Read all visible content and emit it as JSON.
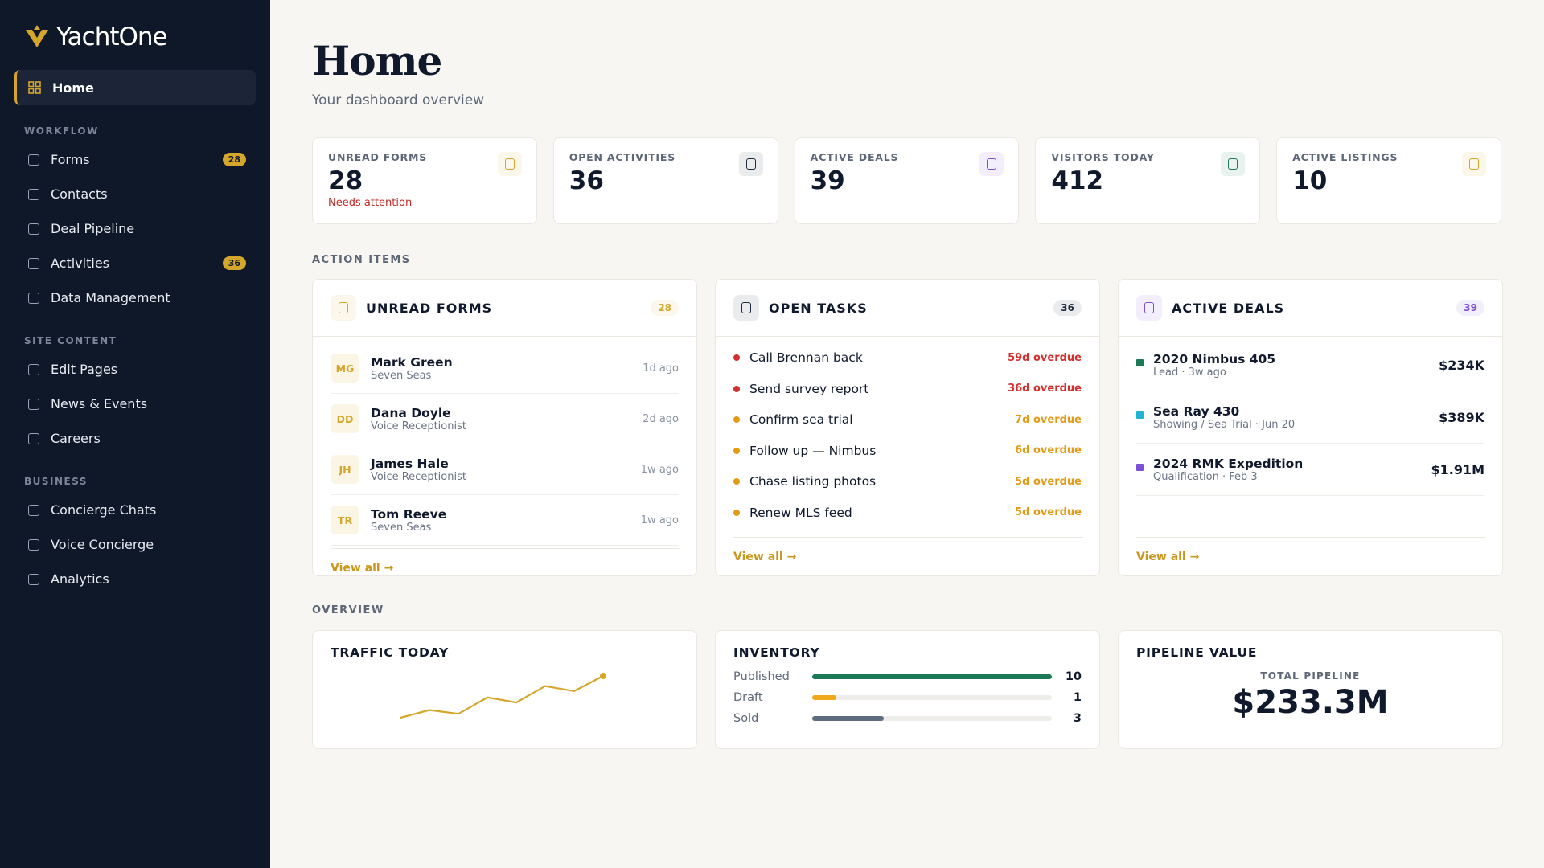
{
  "brand": "YachtOne",
  "nav": {
    "home": "Home",
    "sections": [
      {
        "title": "WORKFLOW",
        "items": [
          {
            "label": "Forms",
            "badge": "28"
          },
          {
            "label": "Contacts"
          },
          {
            "label": "Deal Pipeline"
          },
          {
            "label": "Activities",
            "badge": "36"
          },
          {
            "label": "Data Management"
          }
        ]
      },
      {
        "title": "SITE CONTENT",
        "items": [
          {
            "label": "Edit Pages"
          },
          {
            "label": "News & Events"
          },
          {
            "label": "Careers"
          }
        ]
      },
      {
        "title": "BUSINESS",
        "items": [
          {
            "label": "Concierge Chats"
          },
          {
            "label": "Voice Concierge"
          },
          {
            "label": "Analytics"
          }
        ]
      }
    ]
  },
  "header": {
    "title": "Home",
    "subtitle": "Your dashboard overview"
  },
  "stats": [
    {
      "label": "UNREAD FORMS",
      "value": 28,
      "note": "Needs attention",
      "color": "#d4a72c"
    },
    {
      "label": "OPEN ACTIVITIES",
      "value": 36,
      "color": "#1f2a3d"
    },
    {
      "label": "ACTIVE DEALS",
      "value": 39,
      "color": "#7b4fd6"
    },
    {
      "label": "VISITORS TODAY",
      "value": 412,
      "color": "#1b7a55"
    },
    {
      "label": "ACTIVE LISTINGS",
      "value": 10,
      "color": "#d4a72c"
    }
  ],
  "action_items": {
    "title": "ACTION ITEMS",
    "unread_forms": {
      "title": "UNREAD FORMS",
      "count": "28",
      "color": "#d4a72c",
      "link": "View all →",
      "rows": [
        {
          "initials": "MG",
          "name": "Mark Green",
          "sub": "Seven Seas",
          "time": "1d ago"
        },
        {
          "initials": "DD",
          "name": "Dana Doyle",
          "sub": "Voice Receptionist",
          "time": "2d ago"
        },
        {
          "initials": "JH",
          "name": "James Hale",
          "sub": "Voice Receptionist",
          "time": "1w ago"
        },
        {
          "initials": "TR",
          "name": "Tom Reeve",
          "sub": "Seven Seas",
          "time": "1w ago"
        }
      ]
    },
    "open_tasks": {
      "title": "OPEN TASKS",
      "count": "36",
      "color": "#1f2a3d",
      "link": "View all →",
      "rows": [
        {
          "task": "Call Brennan back",
          "status": "59d overdue",
          "color": "#d32f2f"
        },
        {
          "task": "Send survey report",
          "status": "36d overdue",
          "color": "#d32f2f"
        },
        {
          "task": "Confirm sea trial",
          "status": "7d overdue",
          "color": "#e39b17"
        },
        {
          "task": "Follow up — Nimbus",
          "status": "6d overdue",
          "color": "#e39b17"
        },
        {
          "task": "Chase listing photos",
          "status": "5d overdue",
          "color": "#e39b17"
        },
        {
          "task": "Renew MLS feed",
          "status": "5d overdue",
          "color": "#e39b17"
        }
      ]
    },
    "active_deals": {
      "title": "ACTIVE DEALS",
      "count": "39",
      "color": "#7b4fd6",
      "link": "View all →",
      "rows": [
        {
          "name": "2020 Nimbus 405",
          "sub": "Lead · 3w ago",
          "amount": "$234K",
          "color": "#1b7a55"
        },
        {
          "name": "Sea Ray 430",
          "sub": "Showing / Sea Trial · Jun 20",
          "amount": "$389K",
          "color": "#1fb3d1"
        },
        {
          "name": "2024 RMK Expedition",
          "sub": "Qualification · Feb 3",
          "amount": "$1.91M",
          "color": "#7b4fd6"
        }
      ]
    }
  },
  "overview": {
    "title": "OVERVIEW",
    "traffic": {
      "title": "TRAFFIC TODAY",
      "values": [
        5,
        11,
        8,
        21,
        17,
        30,
        26,
        38
      ],
      "color": "#d4a72c"
    },
    "inventory": {
      "title": "INVENTORY",
      "rows": [
        {
          "label": "Published",
          "value": 10,
          "color": "#1b7a55"
        },
        {
          "label": "Draft",
          "value": 1,
          "color": "#f0a81c"
        },
        {
          "label": "Sold",
          "value": 3,
          "color": "#5f6b7f"
        }
      ]
    },
    "pipeline": {
      "title": "PIPELINE VALUE",
      "label": "TOTAL PIPELINE",
      "value": "$233.3M"
    }
  }
}
